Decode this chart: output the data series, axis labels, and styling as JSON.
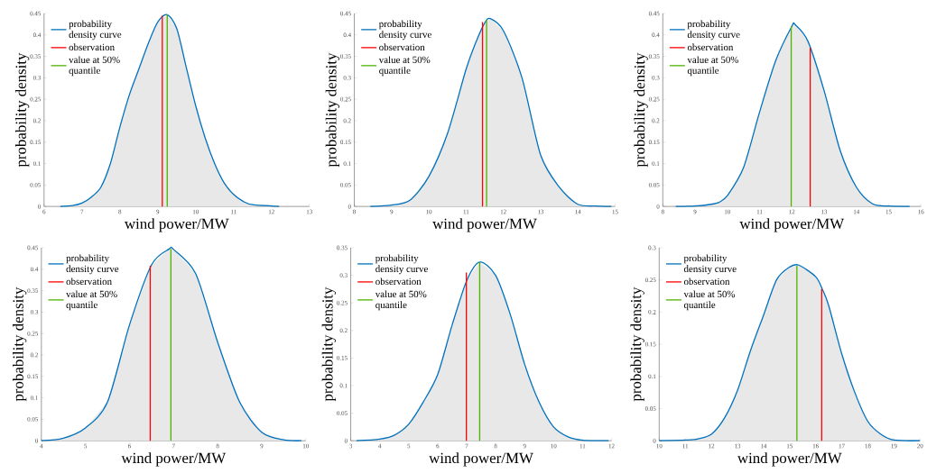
{
  "chart_data": [
    {
      "type": "area",
      "xlabel": "wind power/MW",
      "ylabel": "probability density",
      "legend": "top left",
      "xlim": [
        6,
        13
      ],
      "ylim": [
        0,
        0.45
      ],
      "xticks": [
        6,
        7,
        8,
        9,
        10,
        11,
        12,
        13
      ],
      "yticks": [
        0,
        0.05,
        0.1,
        0.15,
        0.2,
        0.25,
        0.3,
        0.35,
        0.4,
        0.45
      ],
      "series": [
        {
          "name": "probability density curve",
          "type": "area",
          "color": "#0072bd",
          "x": [
            6.43,
            6.75,
            7.0,
            7.25,
            7.5,
            7.75,
            8.0,
            8.25,
            8.5,
            8.75,
            9.0,
            9.25,
            9.5,
            9.75,
            10.0,
            10.25,
            10.5,
            10.75,
            11.0,
            11.25,
            11.5,
            12.2
          ],
          "values": [
            0,
            0.002,
            0.008,
            0.022,
            0.045,
            0.1,
            0.185,
            0.26,
            0.32,
            0.38,
            0.43,
            0.447,
            0.415,
            0.325,
            0.235,
            0.16,
            0.1,
            0.055,
            0.028,
            0.012,
            0.004,
            0
          ]
        },
        {
          "name": "observation",
          "type": "line",
          "color": "#ff0000",
          "x": [
            9.12,
            9.12
          ],
          "values": [
            0,
            0.445
          ]
        },
        {
          "name": "value at 50% quantile",
          "type": "line",
          "color": "#4db300",
          "x": [
            9.25,
            9.25
          ],
          "values": [
            0,
            0.447
          ]
        }
      ]
    },
    {
      "type": "area",
      "xlabel": "wind power/MW",
      "ylabel": "probability density",
      "legend": "top left",
      "xlim": [
        8,
        15
      ],
      "ylim": [
        0,
        0.45
      ],
      "xticks": [
        8,
        9,
        10,
        11,
        12,
        13,
        14,
        15
      ],
      "yticks": [
        0,
        0.05,
        0.1,
        0.15,
        0.2,
        0.25,
        0.3,
        0.35,
        0.4,
        0.45
      ],
      "series": [
        {
          "name": "probability density curve",
          "type": "area",
          "color": "#0072bd",
          "x": [
            8.43,
            9.0,
            9.5,
            10.0,
            10.5,
            11.0,
            11.25,
            11.5,
            11.65,
            12.0,
            12.5,
            13.0,
            13.5,
            14.0,
            14.5,
            14.9
          ],
          "values": [
            0,
            0.003,
            0.015,
            0.07,
            0.17,
            0.32,
            0.38,
            0.428,
            0.438,
            0.41,
            0.3,
            0.12,
            0.045,
            0.005,
            0.001,
            0
          ]
        },
        {
          "name": "observation",
          "type": "line",
          "color": "#ff0000",
          "x": [
            11.44,
            11.44
          ],
          "values": [
            0,
            0.43
          ]
        },
        {
          "name": "value at 50% quantile",
          "type": "line",
          "color": "#4db300",
          "x": [
            11.55,
            11.55
          ],
          "values": [
            0,
            0.435
          ]
        }
      ]
    },
    {
      "type": "area",
      "xlabel": "wind power/MW",
      "ylabel": "probability density",
      "legend": "top left",
      "xlim": [
        8,
        16
      ],
      "ylim": [
        0,
        0.45
      ],
      "xticks": [
        8,
        9,
        10,
        11,
        12,
        13,
        14,
        15,
        16
      ],
      "yticks": [
        0,
        0.05,
        0.1,
        0.15,
        0.2,
        0.25,
        0.3,
        0.35,
        0.4,
        0.45
      ],
      "series": [
        {
          "name": "probability density curve",
          "type": "area",
          "color": "#0072bd",
          "x": [
            8.4,
            9.0,
            9.5,
            9.75,
            10.0,
            10.5,
            11.0,
            11.5,
            12.0,
            12.1,
            12.5,
            13.0,
            13.5,
            14.0,
            14.5,
            15.0,
            15.65
          ],
          "values": [
            0,
            0.001,
            0.005,
            0.01,
            0.025,
            0.09,
            0.22,
            0.34,
            0.42,
            0.424,
            0.385,
            0.27,
            0.13,
            0.045,
            0.006,
            0.001,
            0
          ]
        },
        {
          "name": "observation",
          "type": "line",
          "color": "#ff0000",
          "x": [
            12.57,
            12.57
          ],
          "values": [
            0,
            0.37
          ]
        },
        {
          "name": "value at 50% quantile",
          "type": "line",
          "color": "#4db300",
          "x": [
            11.98,
            11.98
          ],
          "values": [
            0,
            0.42
          ]
        }
      ]
    },
    {
      "type": "area",
      "xlabel": "wind power/MW",
      "ylabel": "probability density",
      "legend": "top left",
      "xlim": [
        4,
        10
      ],
      "ylim": [
        0,
        0.45
      ],
      "xticks": [
        4,
        5,
        6,
        7,
        8,
        9,
        10
      ],
      "yticks": [
        0,
        0.05,
        0.1,
        0.15,
        0.2,
        0.25,
        0.3,
        0.35,
        0.4,
        0.45
      ],
      "series": [
        {
          "name": "probability density curve",
          "type": "area",
          "color": "#0072bd",
          "x": [
            4.0,
            4.5,
            5.0,
            5.5,
            6.0,
            6.5,
            6.9,
            7.0,
            7.5,
            8.0,
            8.5,
            9.0,
            9.5,
            9.9
          ],
          "values": [
            0,
            0.006,
            0.03,
            0.09,
            0.27,
            0.41,
            0.447,
            0.446,
            0.39,
            0.23,
            0.09,
            0.02,
            0.002,
            0
          ]
        },
        {
          "name": "observation",
          "type": "line",
          "color": "#ff0000",
          "x": [
            6.47,
            6.47
          ],
          "values": [
            0,
            0.408
          ]
        },
        {
          "name": "value at 50% quantile",
          "type": "line",
          "color": "#4db300",
          "x": [
            6.94,
            6.94
          ],
          "values": [
            0,
            0.447
          ]
        }
      ]
    },
    {
      "type": "area",
      "xlabel": "wind power/MW",
      "ylabel": "probability density",
      "legend": "top left",
      "xlim": [
        3,
        12
      ],
      "ylim": [
        0,
        0.35
      ],
      "xticks": [
        3,
        4,
        5,
        6,
        7,
        8,
        9,
        10,
        11,
        12
      ],
      "yticks": [
        0,
        0.05,
        0.1,
        0.15,
        0.2,
        0.25,
        0.3,
        0.35
      ],
      "series": [
        {
          "name": "probability density curve",
          "type": "area",
          "color": "#0072bd",
          "x": [
            3.2,
            4.0,
            4.5,
            5.0,
            5.5,
            6.0,
            6.5,
            7.0,
            7.45,
            8.0,
            8.5,
            9.0,
            9.5,
            10.0,
            10.5,
            11.0,
            11.9
          ],
          "values": [
            0,
            0.003,
            0.01,
            0.03,
            0.07,
            0.12,
            0.21,
            0.29,
            0.324,
            0.3,
            0.23,
            0.139,
            0.07,
            0.025,
            0.007,
            0.001,
            0
          ]
        },
        {
          "name": "observation",
          "type": "line",
          "color": "#ff0000",
          "x": [
            6.99,
            6.99
          ],
          "values": [
            0,
            0.305
          ]
        },
        {
          "name": "value at 50% quantile",
          "type": "line",
          "color": "#4db300",
          "x": [
            7.45,
            7.45
          ],
          "values": [
            0,
            0.324
          ]
        }
      ]
    },
    {
      "type": "area",
      "xlabel": "wind power/MW",
      "ylabel": "probability density",
      "legend": "top left",
      "xlim": [
        10,
        20
      ],
      "ylim": [
        0,
        0.3
      ],
      "xticks": [
        10,
        11,
        12,
        13,
        14,
        15,
        16,
        17,
        18,
        19,
        20
      ],
      "yticks": [
        0,
        0.05,
        0.1,
        0.15,
        0.2,
        0.25,
        0.3
      ],
      "series": [
        {
          "name": "probability density curve",
          "type": "area",
          "color": "#0072bd",
          "x": [
            10.0,
            11.0,
            11.5,
            12.0,
            12.5,
            13.0,
            13.5,
            14.0,
            14.5,
            15.0,
            15.35,
            16.0,
            16.25,
            16.5,
            17.0,
            17.5,
            18.0,
            18.5,
            19.0,
            20.0
          ],
          "values": [
            0,
            0.001,
            0.003,
            0.01,
            0.035,
            0.078,
            0.14,
            0.195,
            0.25,
            0.27,
            0.273,
            0.255,
            0.236,
            0.21,
            0.135,
            0.075,
            0.03,
            0.01,
            0.001,
            0
          ]
        },
        {
          "name": "observation",
          "type": "line",
          "color": "#ff0000",
          "x": [
            16.23,
            16.23
          ],
          "values": [
            0,
            0.236
          ]
        },
        {
          "name": "value at 50% quantile",
          "type": "line",
          "color": "#4db300",
          "x": [
            15.28,
            15.28
          ],
          "values": [
            0,
            0.272
          ]
        }
      ]
    }
  ]
}
